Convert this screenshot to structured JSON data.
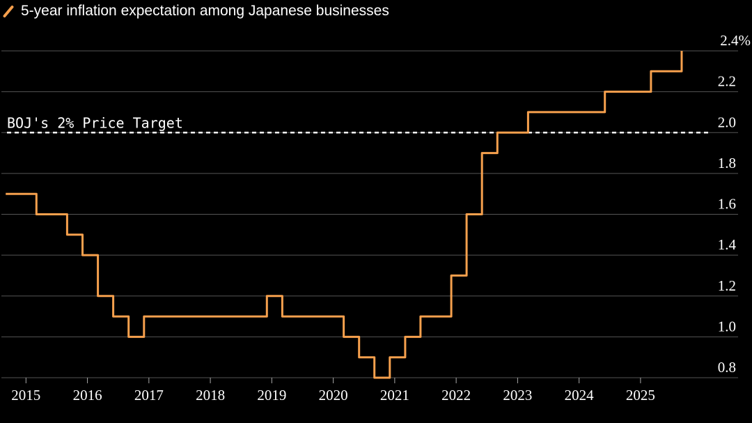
{
  "chart_data": {
    "type": "line",
    "title": "",
    "xlabel": "",
    "ylabel": "",
    "unit": "%",
    "ylim": [
      0.8,
      2.4
    ],
    "yticks": [
      0.8,
      1.0,
      1.2,
      1.4,
      1.6,
      1.8,
      2.0,
      2.2,
      2.4
    ],
    "ytick_labels": [
      "0.8",
      "1.0",
      "1.2",
      "1.4",
      "1.6",
      "1.8",
      "2.0",
      "2.2",
      "2.4%"
    ],
    "xlim": [
      2014.6,
      2026.1
    ],
    "xticks": [
      2015,
      2016,
      2017,
      2018,
      2019,
      2020,
      2021,
      2022,
      2023,
      2024,
      2025
    ],
    "xtick_labels": [
      "2015",
      "2016",
      "2017",
      "2018",
      "2019",
      "2020",
      "2021",
      "2022",
      "2023",
      "2024",
      "2025"
    ],
    "grid": true,
    "legend_position": "top-left",
    "series": [
      {
        "name": "5-year inflation expectation among Japanese businesses",
        "color": "#F6A04D",
        "x": [
          2014.67,
          2014.92,
          2015.17,
          2015.42,
          2015.67,
          2015.92,
          2016.17,
          2016.42,
          2016.67,
          2016.92,
          2017.17,
          2017.42,
          2017.67,
          2017.92,
          2018.17,
          2018.42,
          2018.67,
          2018.92,
          2019.17,
          2019.42,
          2019.67,
          2019.92,
          2020.17,
          2020.42,
          2020.67,
          2020.92,
          2021.17,
          2021.42,
          2021.67,
          2021.92,
          2022.17,
          2022.42,
          2022.67,
          2022.92,
          2023.17,
          2023.42,
          2023.67,
          2023.92,
          2024.17,
          2024.42,
          2024.67,
          2024.92,
          2025.17,
          2025.42,
          2025.67
        ],
        "values": [
          1.7,
          1.7,
          1.6,
          1.6,
          1.5,
          1.4,
          1.2,
          1.1,
          1.0,
          1.1,
          1.1,
          1.1,
          1.1,
          1.1,
          1.1,
          1.1,
          1.1,
          1.2,
          1.1,
          1.1,
          1.1,
          1.1,
          1.0,
          0.9,
          0.8,
          0.9,
          1.0,
          1.1,
          1.1,
          1.3,
          1.6,
          1.9,
          2.0,
          2.0,
          2.1,
          2.1,
          2.1,
          2.1,
          2.1,
          2.2,
          2.2,
          2.2,
          2.3,
          2.3,
          2.4
        ]
      }
    ],
    "reference_line": {
      "label": "BOJ's 2% Price Target",
      "value": 2.0,
      "color": "#FFFFFF",
      "style": "dashed"
    }
  }
}
